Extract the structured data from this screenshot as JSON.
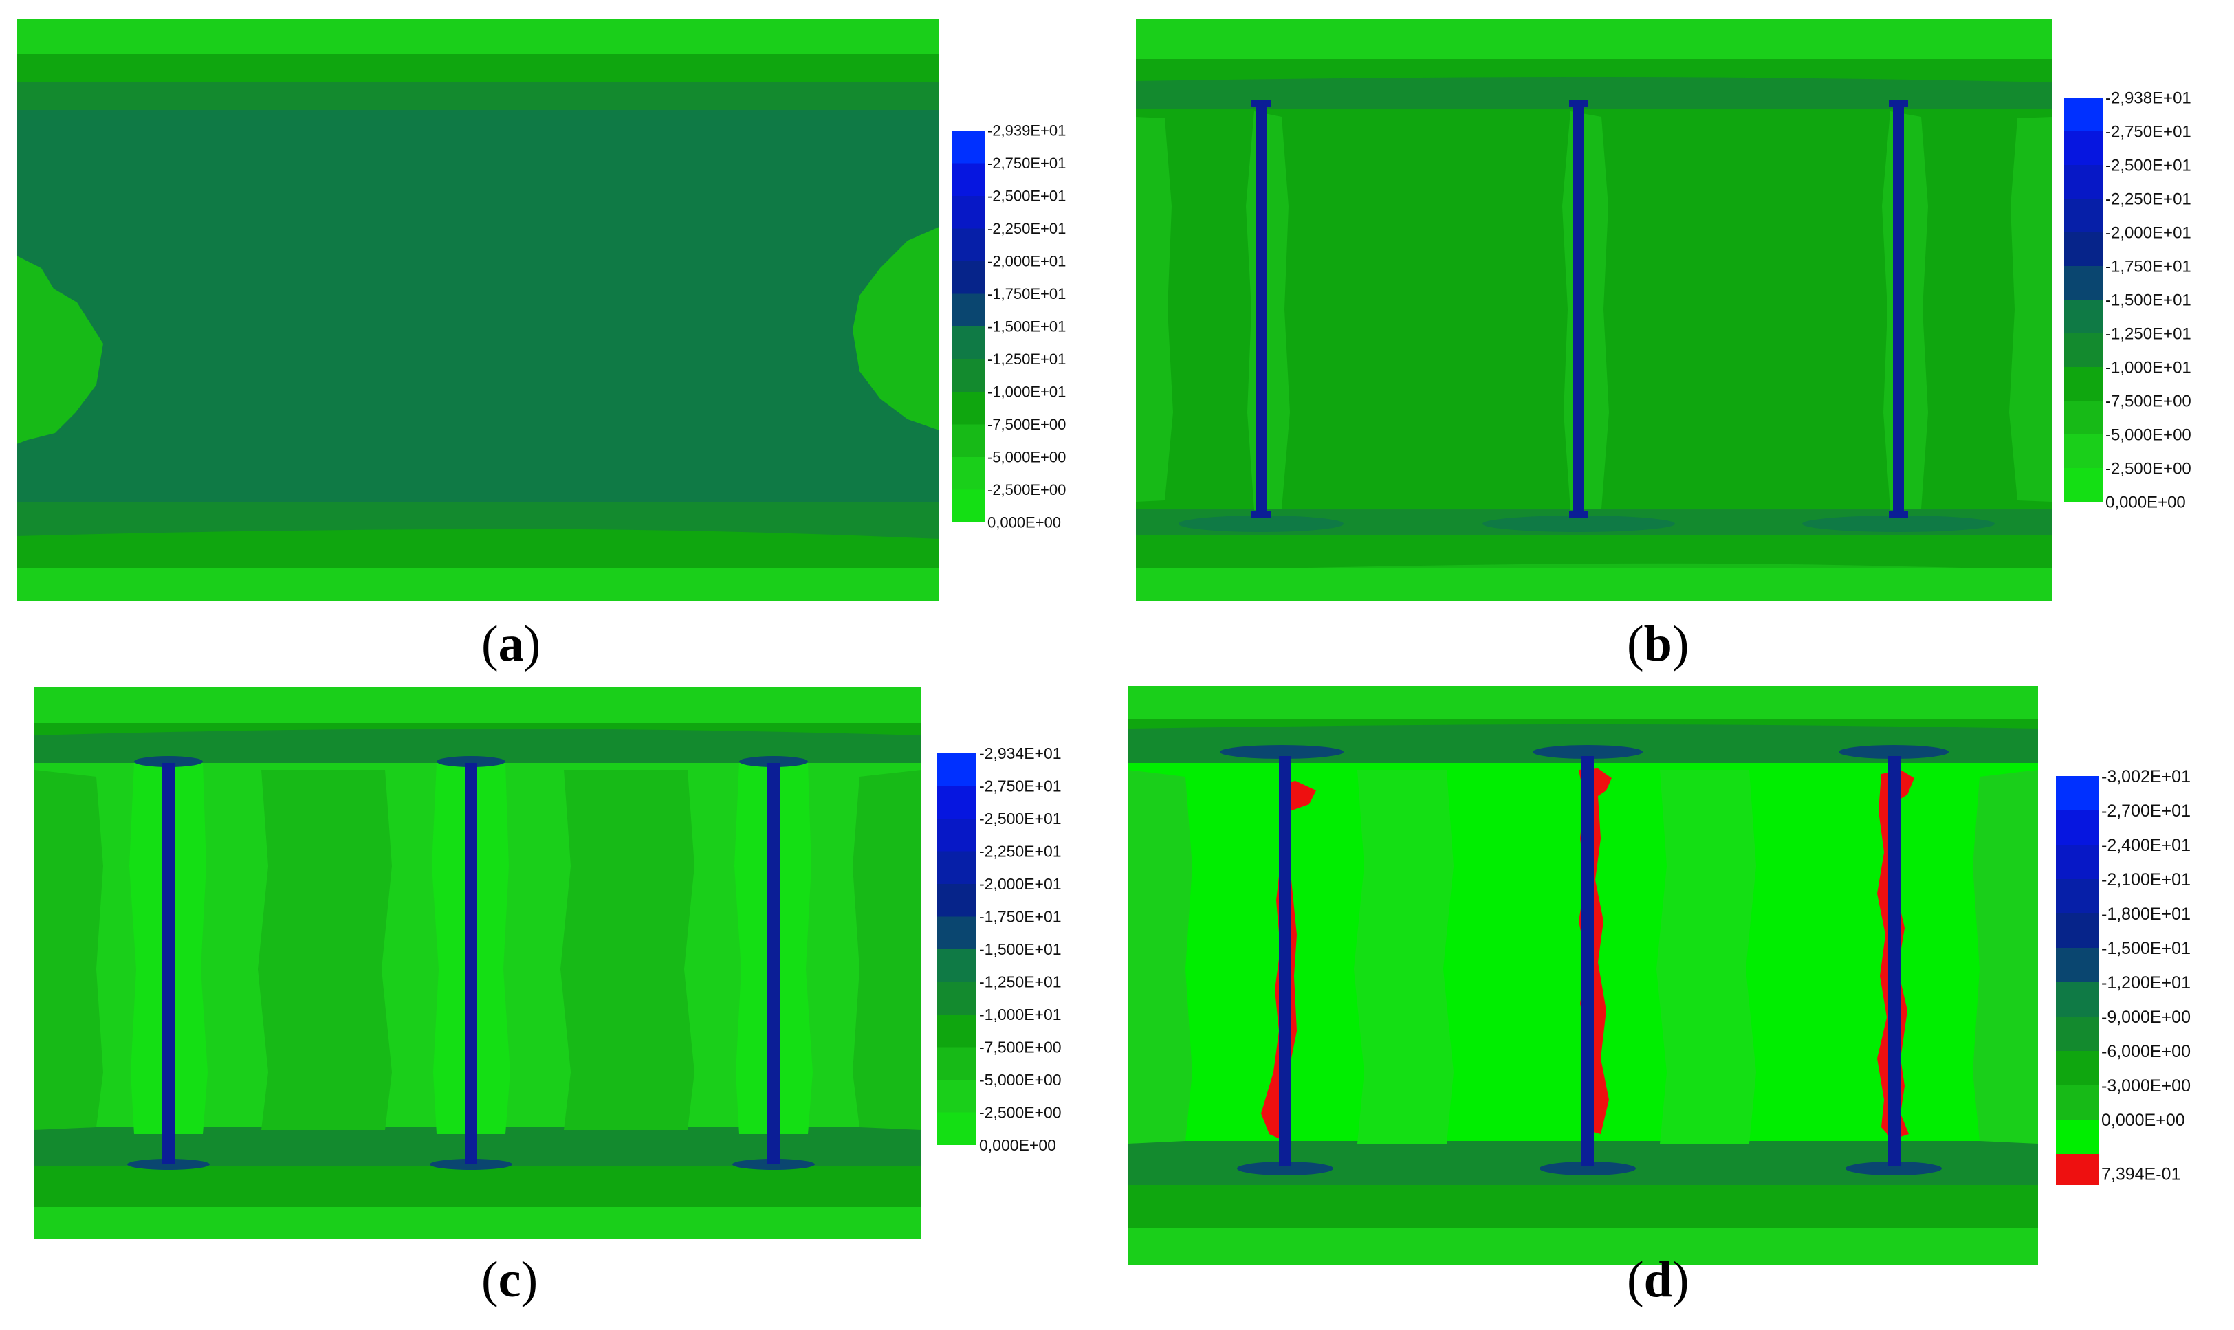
{
  "colors": {
    "band0": "#00ee00",
    "band1": "#14df14",
    "band2": "#1acf1a",
    "band3": "#17ba17",
    "band4": "#0fa60f",
    "band5": "#138a2e",
    "band6": "#0f7a45",
    "band7": "#0a4670",
    "band8": "#06248a",
    "band9": "#061fa8",
    "band10": "#0718c6",
    "band11": "#0616e0",
    "band12": "#0030ff",
    "positive": "#ee1010",
    "stiffener": "#0b1e96"
  },
  "panels": [
    {
      "id": "a",
      "caption": "a",
      "legend": [
        "-2,939E+01",
        "-2,750E+01",
        "-2,500E+01",
        "-2,250E+01",
        "-2,000E+01",
        "-1,750E+01",
        "-1,500E+01",
        "-1,250E+01",
        "-1,000E+01",
        "-7,500E+00",
        "-5,000E+00",
        "-2,500E+00",
        "0,000E+00"
      ],
      "stiffeners": 0
    },
    {
      "id": "b",
      "caption": "b",
      "legend": [
        "-2,938E+01",
        "-2,750E+01",
        "-2,500E+01",
        "-2,250E+01",
        "-2,000E+01",
        "-1,750E+01",
        "-1,500E+01",
        "-1,250E+01",
        "-1,000E+01",
        "-7,500E+00",
        "-5,000E+00",
        "-2,500E+00",
        "0,000E+00"
      ],
      "stiffeners": 3
    },
    {
      "id": "c",
      "caption": "c",
      "legend": [
        "-2,934E+01",
        "-2,750E+01",
        "-2,500E+01",
        "-2,250E+01",
        "-2,000E+01",
        "-1,750E+01",
        "-1,500E+01",
        "-1,250E+01",
        "-1,000E+01",
        "-7,500E+00",
        "-5,000E+00",
        "-2,500E+00",
        "0,000E+00"
      ],
      "stiffeners": 3
    },
    {
      "id": "d",
      "caption": "d",
      "legend": [
        "-3,002E+01",
        "-2,700E+01",
        "-2,400E+01",
        "-2,100E+01",
        "-1,800E+01",
        "-1,500E+01",
        "-1,200E+01",
        "-9,000E+00",
        "-6,000E+00",
        "-3,000E+00",
        "0,000E+00",
        "7,394E-01"
      ],
      "stiffeners": 3
    }
  ]
}
